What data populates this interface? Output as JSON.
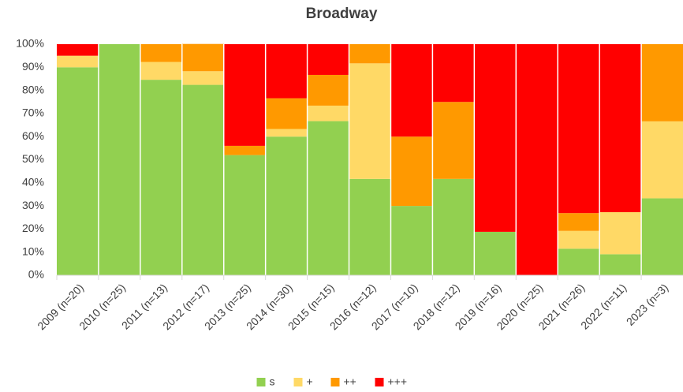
{
  "chart_data": {
    "type": "stacked_bar_100",
    "title": "Broadway",
    "categories": [
      "2009 (n=20)",
      "2010 (n=25)",
      "2011 (n=13)",
      "2012 (n=17)",
      "2013 (n=25)",
      "2014 (n=30)",
      "2015 (n=15)",
      "2016 (n=12)",
      "2017 (n=10)",
      "2018 (n=12)",
      "2019 (n=16)",
      "2020 (n=25)",
      "2021 (n=26)",
      "2022 (n=11)",
      "2023 (n=3)"
    ],
    "series": [
      {
        "name": "s",
        "color": "#92d050",
        "values": [
          90,
          100,
          84.6,
          82.4,
          52,
          60,
          66.7,
          41.7,
          30,
          41.7,
          18.8,
          0,
          11.5,
          9.1,
          33.3
        ]
      },
      {
        "name": "+",
        "color": "#ffd966",
        "values": [
          5,
          0,
          7.7,
          5.9,
          0,
          3.3,
          6.7,
          50,
          0,
          0,
          0,
          0,
          7.7,
          18.2,
          33.3
        ]
      },
      {
        "name": "++",
        "color": "#ff9900",
        "values": [
          0,
          0,
          7.7,
          11.8,
          4,
          13.3,
          13.3,
          8.3,
          30,
          33.3,
          0,
          0,
          7.7,
          0,
          33.4
        ]
      },
      {
        "name": "+++",
        "color": "#ff0000",
        "values": [
          5,
          0,
          0,
          0,
          44,
          23.4,
          13.3,
          0,
          40,
          25,
          81.2,
          100,
          73.1,
          72.7,
          0
        ]
      }
    ],
    "ylim": [
      0,
      100
    ],
    "yticks": [
      {
        "value": 0,
        "label": "0%"
      },
      {
        "value": 10,
        "label": "10%"
      },
      {
        "value": 20,
        "label": "20%"
      },
      {
        "value": 30,
        "label": "30%"
      },
      {
        "value": 40,
        "label": "40%"
      },
      {
        "value": 50,
        "label": "50%"
      },
      {
        "value": 60,
        "label": "60%"
      },
      {
        "value": 70,
        "label": "70%"
      },
      {
        "value": 80,
        "label": "80%"
      },
      {
        "value": 90,
        "label": "90%"
      },
      {
        "value": 100,
        "label": "100%"
      }
    ],
    "legend": "bottom"
  }
}
